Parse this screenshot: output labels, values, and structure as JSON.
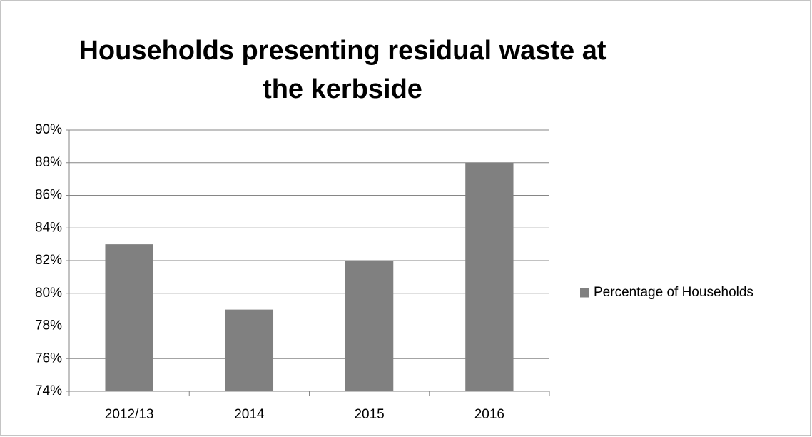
{
  "chart_data": {
    "type": "bar",
    "title": "Households presenting residual waste at the kerbside",
    "categories": [
      "2012/13",
      "2014",
      "2015",
      "2016"
    ],
    "series": [
      {
        "name": "Percentage of Households",
        "color": "#808080",
        "values": [
          83,
          79,
          82,
          88
        ]
      }
    ],
    "ylim": [
      74,
      90
    ],
    "yticks": [
      {
        "value": 74,
        "label": "74%"
      },
      {
        "value": 76,
        "label": "76%"
      },
      {
        "value": 78,
        "label": "78%"
      },
      {
        "value": 80,
        "label": "80%"
      },
      {
        "value": 82,
        "label": "82%"
      },
      {
        "value": 84,
        "label": "84%"
      },
      {
        "value": 86,
        "label": "86%"
      },
      {
        "value": 88,
        "label": "88%"
      },
      {
        "value": 90,
        "label": "90%"
      }
    ],
    "grid": true,
    "legend": "right"
  }
}
